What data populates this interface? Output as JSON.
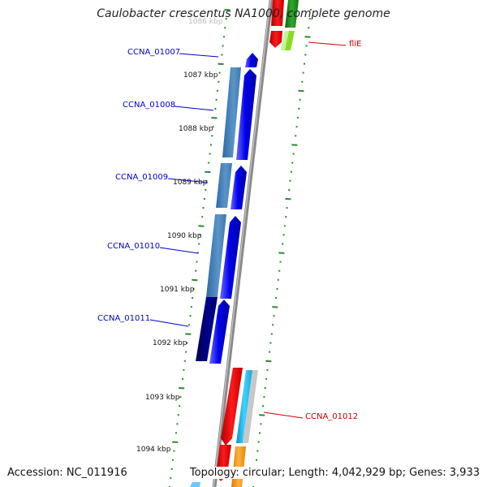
{
  "map": {
    "title": "Caulobacter crescentus NA1000, complete genome",
    "accession_text": "Accession: NC_011916",
    "summary_text": "Topology: circular; Length: 4,042,929 bp; Genes: 3,933"
  },
  "tick_labels": [
    "1086 kbp",
    "1087 kbp",
    "1088 kbp",
    "1089 kbp",
    "1090 kbp",
    "1091 kbp",
    "1092 kbp",
    "1093 kbp",
    "1094 kbp"
  ],
  "genes_reverse": [
    {
      "label": "CCNA_01007"
    },
    {
      "label": "CCNA_01008"
    },
    {
      "label": "CCNA_01009"
    },
    {
      "label": "CCNA_01010"
    },
    {
      "label": "CCNA_01011"
    }
  ],
  "genes_forward": [
    {
      "label": "fliE"
    },
    {
      "label": "CCNA_01012"
    }
  ],
  "colors": {
    "backbone": "#8a8a8a",
    "reverse_gene": "#0000ee",
    "reverse_track_light": "#4a86bd",
    "reverse_track_dark": "#000080",
    "forward_gene": "#ee0000",
    "forward_track_green": "#1e8c1e",
    "forward_track_lightgreen": "#88dd22",
    "forward_track_cyan": "#22c4ee",
    "forward_track_orange": "#ff9900",
    "dots": "#2a8a2a",
    "left_label": "#0000cc",
    "right_label": "#cc0000"
  }
}
